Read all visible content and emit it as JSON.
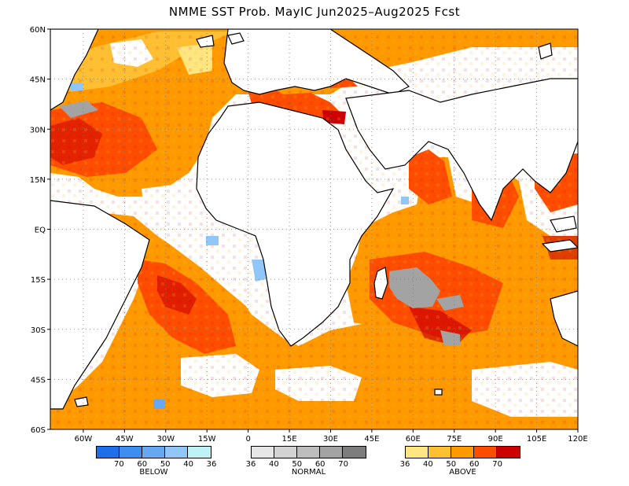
{
  "title": "NMME SST Prob. MayIC   Jun2025–Aug2025 Fcst",
  "map": {
    "lon_labels": [
      "60W",
      "45W",
      "30W",
      "15W",
      "0",
      "15E",
      "30E",
      "45E",
      "60E",
      "75E",
      "90E",
      "105E",
      "120E"
    ],
    "lat_labels": [
      "60N",
      "45N",
      "30N",
      "15N",
      "EQ",
      "15S",
      "30S",
      "45S",
      "60S"
    ],
    "lon_range": [
      -72,
      120
    ],
    "lat_range": [
      -60,
      60
    ],
    "colors": {
      "above": [
        "#ffe680",
        "#ffbf33",
        "#ff9900",
        "#ff4d00",
        "#cc0000"
      ],
      "below": [
        "#1f6fe8",
        "#3d8ef0",
        "#66a8f2",
        "#91c7f8",
        "#bff2f7"
      ],
      "normal": [
        "#e6e6e6",
        "#d3d3d3",
        "#bdbdbd",
        "#a3a3a3",
        "#7d7d7d"
      ]
    }
  },
  "legend": {
    "below": {
      "title": "BELOW",
      "ticks": [
        "70",
        "60",
        "50",
        "40",
        "36"
      ]
    },
    "normal": {
      "title": "NORMAL",
      "ticks": [
        "36",
        "40",
        "50",
        "60",
        "70"
      ]
    },
    "above": {
      "title": "ABOVE",
      "ticks": [
        "36",
        "40",
        "50",
        "60",
        "70"
      ]
    }
  }
}
